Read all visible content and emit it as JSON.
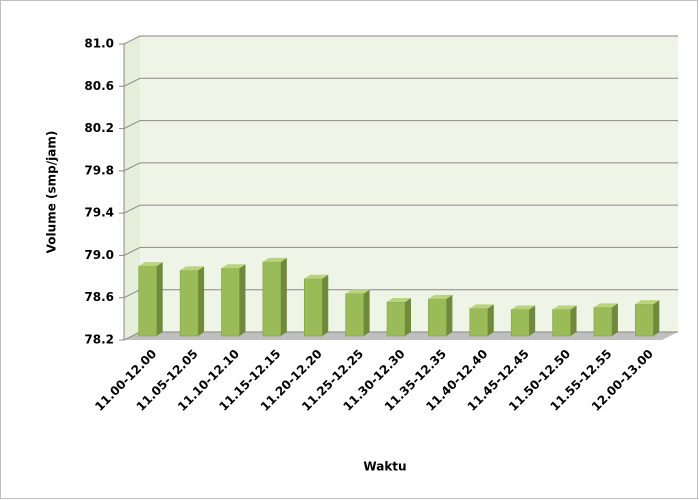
{
  "chart_data": {
    "type": "bar3d",
    "x_label": "Waktu",
    "y_label": "Volume (smp/jam)",
    "categories": [
      "11.00-12.00",
      "11.05-12.05",
      "11.10-12.10",
      "11.15-12.15",
      "11.20-12.20",
      "11.25-12.25",
      "11.30-12.30",
      "11.35-12.35",
      "11.40-12.40",
      "11.45-12.45",
      "11.50-12.50",
      "11.55-12.55",
      "12.00-13.00"
    ],
    "values": [
      78.88,
      78.84,
      78.86,
      78.92,
      78.76,
      78.62,
      78.54,
      78.57,
      78.48,
      78.47,
      78.47,
      78.49,
      78.52
    ],
    "color": "#9bbb59",
    "ylim": [
      78.2,
      81.0
    ],
    "yticks": [
      78.2,
      78.6,
      {
        "value": 79.0,
        "label": "79.0"
      },
      79.4,
      79.8,
      80.2,
      80.6,
      {
        "value": 81.0,
        "label": "81.0"
      }
    ],
    "grid": true
  }
}
